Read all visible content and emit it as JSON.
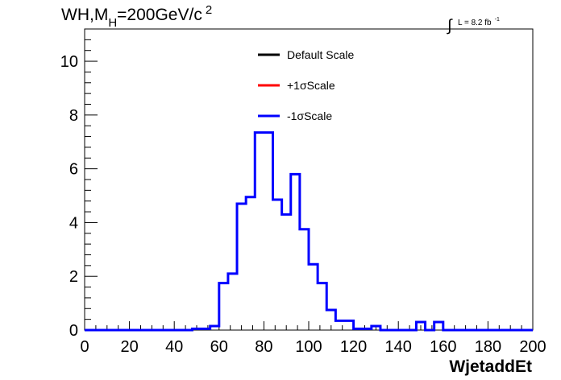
{
  "title": {
    "base": "WH,M",
    "subscript": "H",
    "rest": "=200GeV/c",
    "superscript": "2"
  },
  "luminosity": {
    "integral": "∫",
    "text": "L = 8.2 fb",
    "superscript": "-1"
  },
  "legend": {
    "entries": [
      {
        "label": "Default Scale",
        "color": "#000000"
      },
      {
        "label": "+1σScale",
        "color": "#ff0000"
      },
      {
        "label": "-1σScale",
        "color": "#0000ff"
      }
    ]
  },
  "chart_data": {
    "type": "histogram",
    "xlabel": "WjetaddEt",
    "ylabel": "",
    "xlim": [
      0,
      200
    ],
    "ylim": [
      0,
      11.2
    ],
    "xticks": [
      0,
      20,
      40,
      60,
      80,
      100,
      120,
      140,
      160,
      180,
      200
    ],
    "yticks": [
      0,
      2,
      4,
      6,
      8,
      10
    ],
    "bin_edges": [
      0,
      4,
      8,
      12,
      16,
      20,
      24,
      28,
      32,
      36,
      40,
      44,
      48,
      52,
      56,
      60,
      64,
      68,
      72,
      76,
      80,
      84,
      88,
      92,
      96,
      100,
      104,
      108,
      112,
      116,
      120,
      124,
      128,
      132,
      136,
      140,
      144,
      148,
      152,
      156,
      160,
      164,
      168,
      172,
      176,
      180,
      184,
      188,
      192,
      196,
      200
    ],
    "series": [
      {
        "name": "-1σScale",
        "color": "#0000ff",
        "values": [
          0,
          0,
          0,
          0,
          0,
          0,
          0,
          0,
          0,
          0,
          0,
          0,
          0.05,
          0.05,
          0.15,
          1.75,
          2.1,
          4.7,
          4.95,
          7.35,
          7.35,
          4.85,
          4.3,
          5.8,
          3.75,
          2.45,
          1.75,
          0.75,
          0.35,
          0.35,
          0.05,
          0.05,
          0.15,
          0,
          0,
          0,
          0,
          0.3,
          0,
          0.3,
          0,
          0,
          0,
          0,
          0,
          0,
          0,
          0,
          0,
          0
        ]
      }
    ],
    "grid": false,
    "legend_position": "top-center"
  }
}
